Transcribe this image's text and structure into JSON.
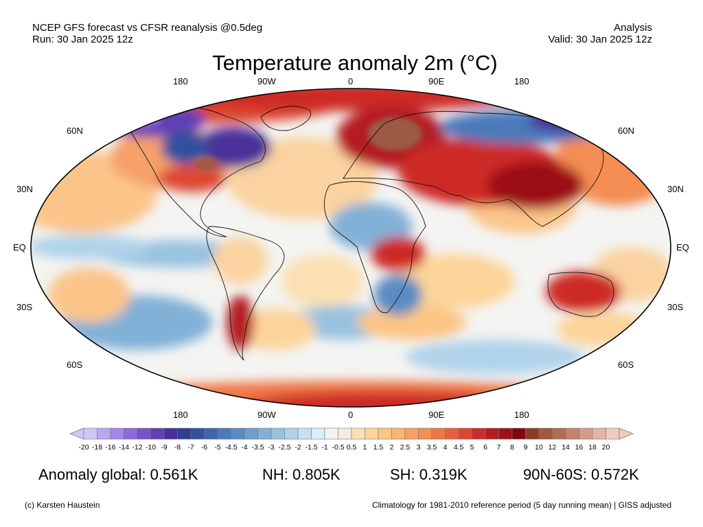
{
  "header": {
    "source": "NCEP GFS forecast vs CFSR reanalysis @0.5deg",
    "run": "Run: 30 Jan 2025 12z",
    "mode": "Analysis",
    "valid": "Valid: 30 Jan 2025 12z"
  },
  "title": "Temperature anomaly 2m (°C)",
  "longitude_labels": [
    "180",
    "90W",
    "0",
    "90E",
    "180"
  ],
  "latitude_labels": {
    "n60": "60N",
    "n30": "30N",
    "eq": "EQ",
    "s30": "30S",
    "s60": "60S"
  },
  "colorbar": {
    "labels": [
      "-20",
      "-18",
      "-16",
      "-14",
      "-12",
      "-10",
      "-9",
      "-8",
      "-7",
      "-6",
      "-5",
      "-4.5",
      "-4",
      "-3.5",
      "-3",
      "-2.5",
      "-2",
      "-1.5",
      "-1",
      "-0.5",
      "0.5",
      "1",
      "1.5",
      "2",
      "2.5",
      "3",
      "3.5",
      "4",
      "4.5",
      "5",
      "6",
      "7",
      "8",
      "9",
      "10",
      "12",
      "14",
      "16",
      "18",
      "20"
    ],
    "colors": [
      "#cfc6f7",
      "#b9a8f0",
      "#a288e6",
      "#8c6bdc",
      "#7652cc",
      "#6140b4",
      "#48309a",
      "#2d3f8e",
      "#33509f",
      "#3f65ae",
      "#4c79ba",
      "#5a8cc3",
      "#6d9fcd",
      "#82b1d7",
      "#98c2e0",
      "#b0d3ea",
      "#c6e1f2",
      "#dbedf8",
      "#f2f2f2",
      "#f5ebe0",
      "#fbe0b3",
      "#fdd49a",
      "#fcc585",
      "#fab571",
      "#f7a160",
      "#f48d52",
      "#ef7746",
      "#e8603b",
      "#dd4631",
      "#cd2b28",
      "#b51c20",
      "#9c1118",
      "#80070d",
      "#8f3b24",
      "#a4573c",
      "#b26d55",
      "#c28370",
      "#d49b8b",
      "#e4b4a6",
      "#f1cbbf"
    ]
  },
  "stats": {
    "global": "Anomaly global: 0.561K",
    "nh": "NH: 0.805K",
    "sh": "SH: 0.319K",
    "arctic": "90N-60S: 0.572K"
  },
  "footer": {
    "credit": "(c) Karsten Haustein",
    "note": "Climatology for 1981-2010 reference period (5 day running mean) | GISS adjusted"
  }
}
